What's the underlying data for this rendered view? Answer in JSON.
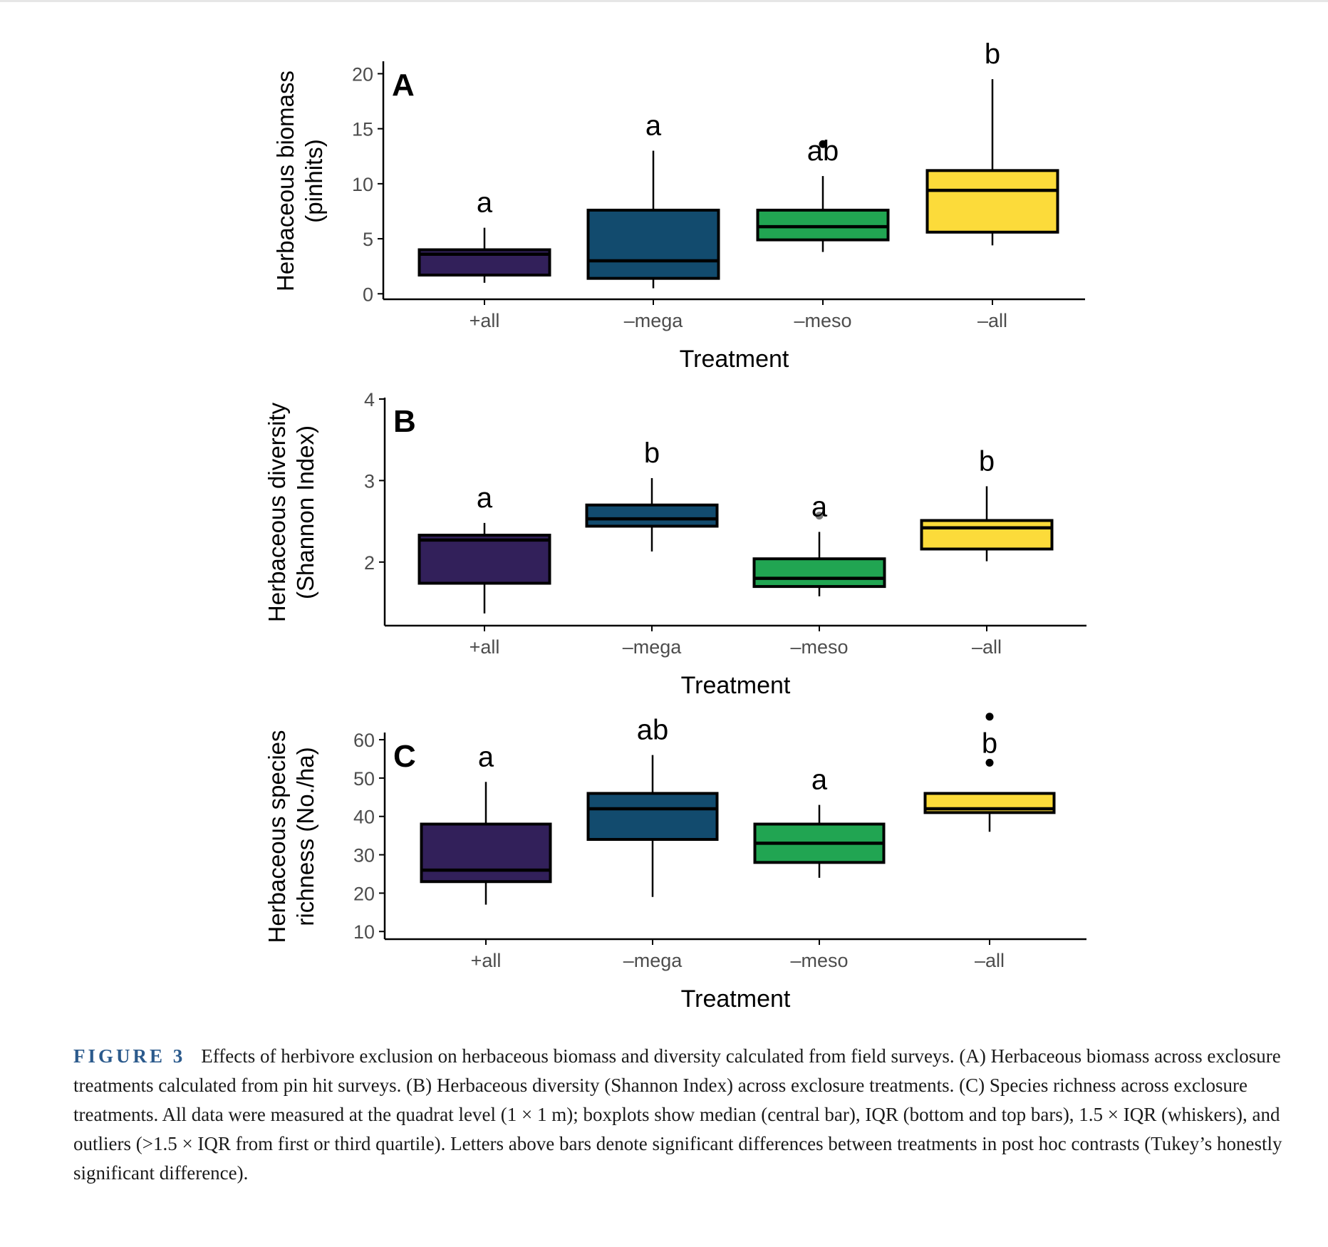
{
  "colors": {
    "plus_all": "#32205a",
    "minus_mega": "#124b6e",
    "minus_meso": "#21a552",
    "minus_all": "#fcdb3a",
    "axis": "#000000",
    "tick_text": "#4d4d4d",
    "caption_label": "#2b5a8c"
  },
  "chart_data": [
    {
      "type": "box",
      "panel": "A",
      "xlabel": "Treatment",
      "ylabel": [
        "Herbaceous biomass",
        "(pinhits)"
      ],
      "yticks": [
        0,
        5,
        10,
        15,
        20
      ],
      "ylim": [
        -0.5,
        21
      ],
      "grid": false,
      "legend": "none",
      "categories": [
        "+all",
        "–mega",
        "–meso",
        "–all"
      ],
      "boxes": [
        {
          "category": "+all",
          "min": 1,
          "q1": 1.7,
          "median": 3.6,
          "q3": 4,
          "max": 6,
          "letter": "a",
          "outliers": []
        },
        {
          "category": "–mega",
          "min": 0.5,
          "q1": 1.4,
          "median": 3,
          "q3": 7.6,
          "max": 13,
          "letter": "a",
          "outliers": []
        },
        {
          "category": "–meso",
          "min": 3.8,
          "q1": 4.9,
          "median": 6.1,
          "q3": 7.6,
          "max": 10.7,
          "letter": "ab",
          "outliers": [
            13.6
          ]
        },
        {
          "category": "–all",
          "min": 4.4,
          "q1": 5.6,
          "median": 9.4,
          "q3": 11.2,
          "max": 19.5,
          "letter": "b",
          "outliers": []
        }
      ]
    },
    {
      "type": "box",
      "panel": "B",
      "xlabel": "Treatment",
      "ylabel": [
        "Herbaceous diversity",
        "(Shannon Index)"
      ],
      "yticks": [
        2,
        3,
        4
      ],
      "ylim": [
        1.22,
        4
      ],
      "grid": false,
      "legend": "none",
      "categories": [
        "+all",
        "–mega",
        "–meso",
        "–all"
      ],
      "boxes": [
        {
          "category": "+all",
          "min": 1.37,
          "q1": 1.74,
          "median": 2.27,
          "q3": 2.33,
          "max": 2.48,
          "letter": "a",
          "outliers": []
        },
        {
          "category": "–mega",
          "min": 2.13,
          "q1": 2.44,
          "median": 2.53,
          "q3": 2.7,
          "max": 3.03,
          "letter": "b",
          "outliers": []
        },
        {
          "category": "–meso",
          "min": 1.58,
          "q1": 1.7,
          "median": 1.8,
          "q3": 2.04,
          "max": 2.37,
          "letter": "a",
          "outliers": [
            2.57
          ]
        },
        {
          "category": "–all",
          "min": 2.01,
          "q1": 2.16,
          "median": 2.42,
          "q3": 2.51,
          "max": 2.93,
          "letter": "b",
          "outliers": []
        }
      ]
    },
    {
      "type": "box",
      "panel": "C",
      "xlabel": "Treatment",
      "ylabel": [
        "Herbaceous species",
        "richness (No./ha)"
      ],
      "yticks": [
        10,
        20,
        30,
        40,
        50,
        60
      ],
      "ylim": [
        8,
        61.5
      ],
      "grid": false,
      "legend": "none",
      "categories": [
        "+all",
        "–mega",
        "–meso",
        "–all"
      ],
      "boxes": [
        {
          "category": "+all",
          "min": 17,
          "q1": 23,
          "median": 26,
          "q3": 38,
          "max": 49,
          "letter": "a",
          "outliers": []
        },
        {
          "category": "–mega",
          "min": 19,
          "q1": 34,
          "median": 42,
          "q3": 46,
          "max": 56,
          "letter": "ab",
          "outliers": []
        },
        {
          "category": "–meso",
          "min": 24,
          "q1": 28,
          "median": 33,
          "q3": 38,
          "max": 43,
          "letter": "a",
          "outliers": []
        },
        {
          "category": "–all",
          "min": 36,
          "q1": 41,
          "median": 42,
          "q3": 46,
          "max": 46,
          "letter": "b",
          "outliers": [
            54,
            66
          ]
        }
      ]
    }
  ],
  "caption": {
    "label": "FIGURE 3",
    "text": "Effects of herbivore exclusion on herbaceous biomass and diversity calculated from field surveys. (A) Herbaceous biomass across exclosure treatments calculated from pin hit surveys. (B) Herbaceous diversity (Shannon Index) across exclosure treatments. (C) Species richness across exclosure treatments. All data were measured at the quadrat level (1 × 1 m); boxplots show median (central bar), IQR (bottom and top bars), 1.5 × IQR (whiskers), and outliers (>1.5 × IQR from first or third quartile). Letters above bars denote significant differences between treatments in post hoc contrasts (Tukey’s honestly significant difference)."
  }
}
